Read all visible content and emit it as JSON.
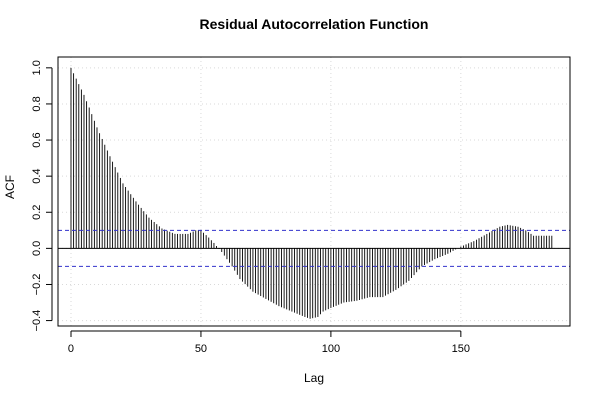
{
  "chart_data": {
    "type": "bar",
    "title": "Residual Autocorrelation Function",
    "xlabel": "Lag",
    "ylabel": "ACF",
    "xlim": [
      -5,
      192
    ],
    "ylim": [
      -0.43,
      1.06
    ],
    "x_ticks": [
      0,
      50,
      100,
      150
    ],
    "y_ticks": [
      -0.4,
      -0.2,
      0.0,
      0.2,
      0.4,
      0.6,
      0.8,
      1.0
    ],
    "y_tick_labels": [
      "−0.4",
      "−0.2",
      "0.0",
      "0.2",
      "0.4",
      "0.6",
      "0.8",
      "1.0"
    ],
    "grid": true,
    "confidence_band": 0.1,
    "colors": {
      "bars": "#000000",
      "band": "#3333cc",
      "grid": "#d9d9d9",
      "zero": "#000000",
      "frame": "#000000"
    },
    "anchors": [
      [
        0,
        1.0
      ],
      [
        1,
        0.97
      ],
      [
        2,
        0.94
      ],
      [
        3,
        0.91
      ],
      [
        5,
        0.85
      ],
      [
        7,
        0.78
      ],
      [
        10,
        0.67
      ],
      [
        15,
        0.51
      ],
      [
        20,
        0.36
      ],
      [
        25,
        0.26
      ],
      [
        30,
        0.17
      ],
      [
        35,
        0.11
      ],
      [
        40,
        0.08
      ],
      [
        45,
        0.08
      ],
      [
        48,
        0.1
      ],
      [
        50,
        0.1
      ],
      [
        53,
        0.06
      ],
      [
        55,
        0.03
      ],
      [
        58,
        -0.02
      ],
      [
        62,
        -0.1
      ],
      [
        65,
        -0.17
      ],
      [
        70,
        -0.24
      ],
      [
        75,
        -0.28
      ],
      [
        80,
        -0.32
      ],
      [
        85,
        -0.35
      ],
      [
        90,
        -0.38
      ],
      [
        92,
        -0.39
      ],
      [
        95,
        -0.38
      ],
      [
        97,
        -0.35
      ],
      [
        100,
        -0.33
      ],
      [
        105,
        -0.3
      ],
      [
        110,
        -0.29
      ],
      [
        115,
        -0.27
      ],
      [
        120,
        -0.27
      ],
      [
        125,
        -0.23
      ],
      [
        130,
        -0.18
      ],
      [
        135,
        -0.1
      ],
      [
        140,
        -0.06
      ],
      [
        145,
        -0.03
      ],
      [
        150,
        0.01
      ],
      [
        155,
        0.04
      ],
      [
        160,
        0.08
      ],
      [
        165,
        0.12
      ],
      [
        168,
        0.13
      ],
      [
        172,
        0.12
      ],
      [
        175,
        0.1
      ],
      [
        178,
        0.07
      ],
      [
        181,
        0.07
      ],
      [
        185,
        0.07
      ]
    ]
  }
}
